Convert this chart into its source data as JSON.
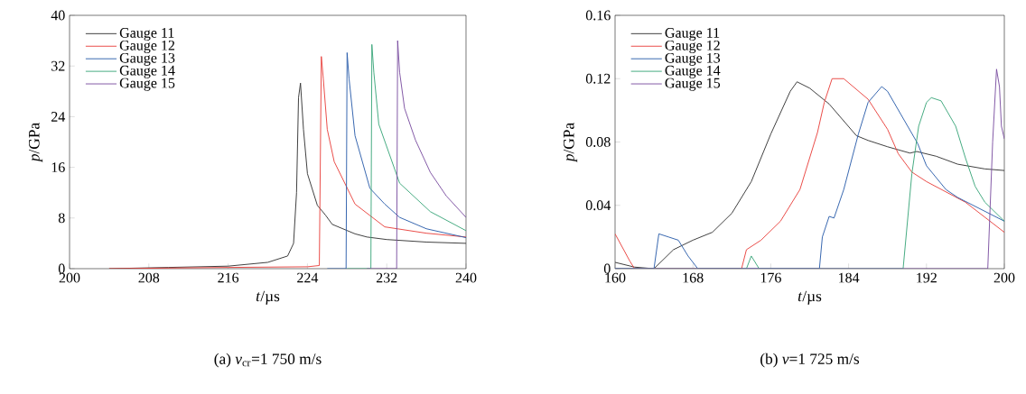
{
  "chart_data": [
    {
      "type": "line",
      "title": "(a) *v*$_{cr}$=1 750 m/s",
      "xlabel": "*t*/µs",
      "ylabel": "*p*/GPa",
      "xlim": [
        200,
        240
      ],
      "ylim": [
        0,
        40
      ],
      "xticks": [
        200,
        208,
        216,
        224,
        232,
        240
      ],
      "yticks": [
        0,
        8,
        16,
        24,
        32,
        40
      ],
      "legend": "top left",
      "grid": false,
      "series": [
        {
          "name": "Gauge 11",
          "color": "#333333",
          "x": [
            204,
            210,
            216,
            220,
            222,
            222.6,
            222.9,
            223.1,
            223.3,
            223.6,
            224,
            225,
            225.8,
            226.5,
            228.8,
            230,
            232,
            236,
            240
          ],
          "values": [
            0,
            0.2,
            0.4,
            1,
            2,
            4,
            12,
            27,
            29.3,
            22,
            15,
            10,
            8.5,
            7,
            5.5,
            5,
            4.6,
            4.2,
            4
          ]
        },
        {
          "name": "Gauge 12",
          "color": "#e8413c",
          "x": [
            204,
            216,
            224,
            225.2,
            225.4,
            225.6,
            226,
            226.7,
            228.8,
            231.8,
            236,
            240
          ],
          "values": [
            0,
            0.2,
            0.3,
            0.5,
            33.5,
            30,
            22,
            16.9,
            10.2,
            6.6,
            5.6,
            5
          ]
        },
        {
          "name": "Gauge 13",
          "color": "#2a5caa",
          "x": [
            226,
            227.9,
            228.0,
            228.2,
            228.8,
            230.3,
            231.8,
            233.3,
            236,
            240
          ],
          "values": [
            0,
            0,
            34.1,
            30,
            21,
            12.7,
            10.2,
            8.1,
            6.3,
            4.9
          ]
        },
        {
          "name": "Gauge 14",
          "color": "#3aa67a",
          "x": [
            228,
            230.4,
            230.5,
            230.7,
            231.2,
            233.3,
            236.4,
            240
          ],
          "values": [
            0,
            0,
            35.4,
            31,
            22.8,
            13.5,
            9,
            6
          ]
        },
        {
          "name": "Gauge 15",
          "color": "#7b4fa0",
          "x": [
            230,
            233.0,
            233.1,
            233.3,
            233.8,
            234.9,
            236.4,
            238,
            240
          ],
          "values": [
            0,
            0,
            36,
            31,
            25.3,
            20.3,
            15.2,
            11.5,
            8.1
          ]
        }
      ]
    },
    {
      "type": "line",
      "title": "(b) *v*=1 725 m/s",
      "xlabel": "*t*/µs",
      "ylabel": "*p*/GPa",
      "xlim": [
        160,
        200
      ],
      "ylim": [
        0,
        0.16
      ],
      "xticks": [
        160,
        168,
        176,
        184,
        192,
        200
      ],
      "yticks": [
        0,
        0.04,
        0.08,
        0.12,
        0.16
      ],
      "legend": "top left",
      "grid": false,
      "series": [
        {
          "name": "Gauge 11",
          "color": "#333333",
          "x": [
            160,
            162,
            164,
            166,
            168,
            170,
            172,
            174,
            176,
            178,
            178.7,
            180,
            182,
            184.8,
            186,
            188,
            190.3,
            191,
            193,
            195.2,
            198,
            200
          ],
          "values": [
            0.004,
            0.001,
            0,
            0.012,
            0.018,
            0.023,
            0.035,
            0.055,
            0.085,
            0.112,
            0.118,
            0.114,
            0.104,
            0.084,
            0.081,
            0.077,
            0.073,
            0.074,
            0.071,
            0.066,
            0.063,
            0.062
          ]
        },
        {
          "name": "Gauge 12",
          "color": "#e8413c",
          "x": [
            160,
            161.5,
            162,
            173,
            173.5,
            175,
            177,
            179,
            180.8,
            181.5,
            182.3,
            183.5,
            186,
            188,
            189.1,
            190.5,
            192,
            196,
            200
          ],
          "values": [
            0.022,
            0.005,
            0,
            0,
            0.012,
            0.018,
            0.03,
            0.05,
            0.086,
            0.105,
            0.12,
            0.12,
            0.107,
            0.088,
            0.0726,
            0.061,
            0.055,
            0.042,
            0.023
          ]
        },
        {
          "name": "Gauge 13",
          "color": "#2a5caa",
          "x": [
            160,
            164,
            164.5,
            165.5,
            166.5,
            167.5,
            168.5,
            181,
            181.3,
            182,
            182.5,
            183.5,
            185,
            186,
            187.4,
            188,
            191.1,
            192,
            194,
            195.2,
            200
          ],
          "values": [
            0,
            0,
            0.022,
            0.02,
            0.018,
            0.008,
            0,
            0,
            0.02,
            0.033,
            0.032,
            0.05,
            0.085,
            0.105,
            0.115,
            0.112,
            0.079,
            0.065,
            0.05,
            0.045,
            0.03
          ]
        },
        {
          "name": "Gauge 14",
          "color": "#3aa67a",
          "x": [
            160,
            173.5,
            174,
            174.8,
            189.6,
            190.5,
            191.2,
            192,
            192.5,
            193.5,
            195,
            196,
            197,
            198,
            200
          ],
          "values": [
            0,
            0,
            0.008,
            0,
            0,
            0.06,
            0.09,
            0.105,
            0.108,
            0.106,
            0.09,
            0.07,
            0.052,
            0.042,
            0.03
          ]
        },
        {
          "name": "Gauge 15",
          "color": "#7b4fa0",
          "x": [
            160,
            198.3,
            198.8,
            199.2,
            199.5,
            199.7,
            200
          ],
          "values": [
            0,
            0,
            0.08,
            0.126,
            0.115,
            0.09,
            0.082
          ]
        }
      ]
    }
  ]
}
